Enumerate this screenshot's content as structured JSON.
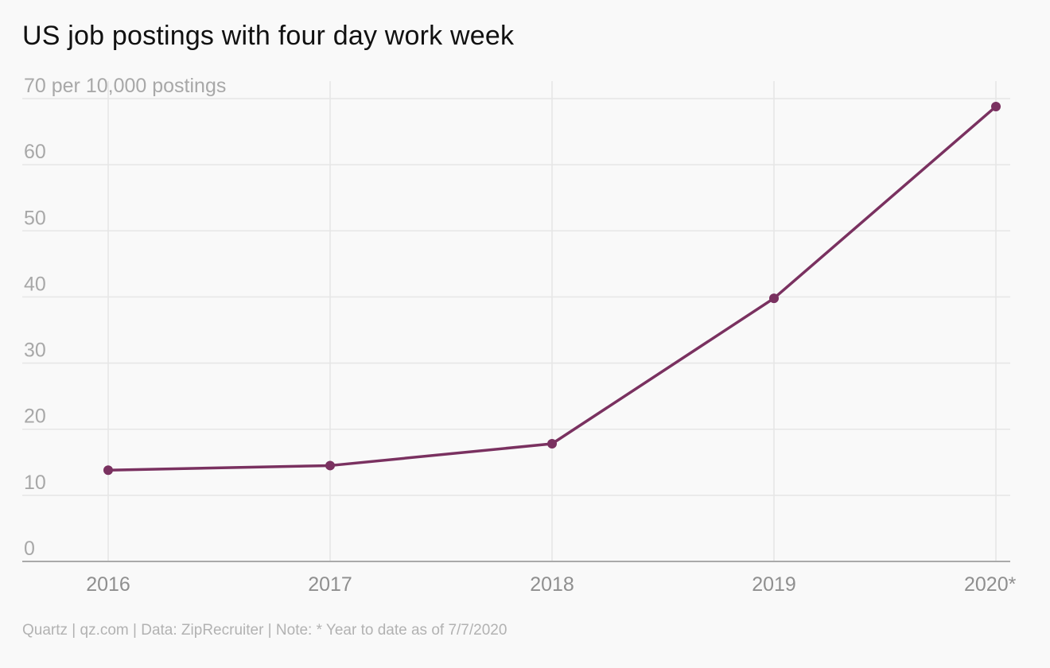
{
  "title": "US job postings with four day work week",
  "footer": "Quartz | qz.com | Data: ZipRecruiter | Note: * Year to date as of 7/7/2020",
  "colors": {
    "line": "#7a3160",
    "grid": "#e6e6e6",
    "axis": "#aaaaaa"
  },
  "chart_data": {
    "type": "line",
    "title": "US job postings with four day work week",
    "x": [
      "2016",
      "2017",
      "2018",
      "2019",
      "2020*"
    ],
    "series": [
      {
        "values": [
          13.8,
          14.5,
          17.8,
          39.8,
          68.8
        ]
      }
    ],
    "ylim": [
      0,
      70
    ],
    "yticks": [
      0,
      10,
      20,
      30,
      40,
      50,
      60,
      70
    ],
    "ytick_labels": [
      "0",
      "10",
      "20",
      "30",
      "40",
      "50",
      "60",
      "70 per 10,000 postings"
    ],
    "grid": true,
    "legend": "none"
  }
}
